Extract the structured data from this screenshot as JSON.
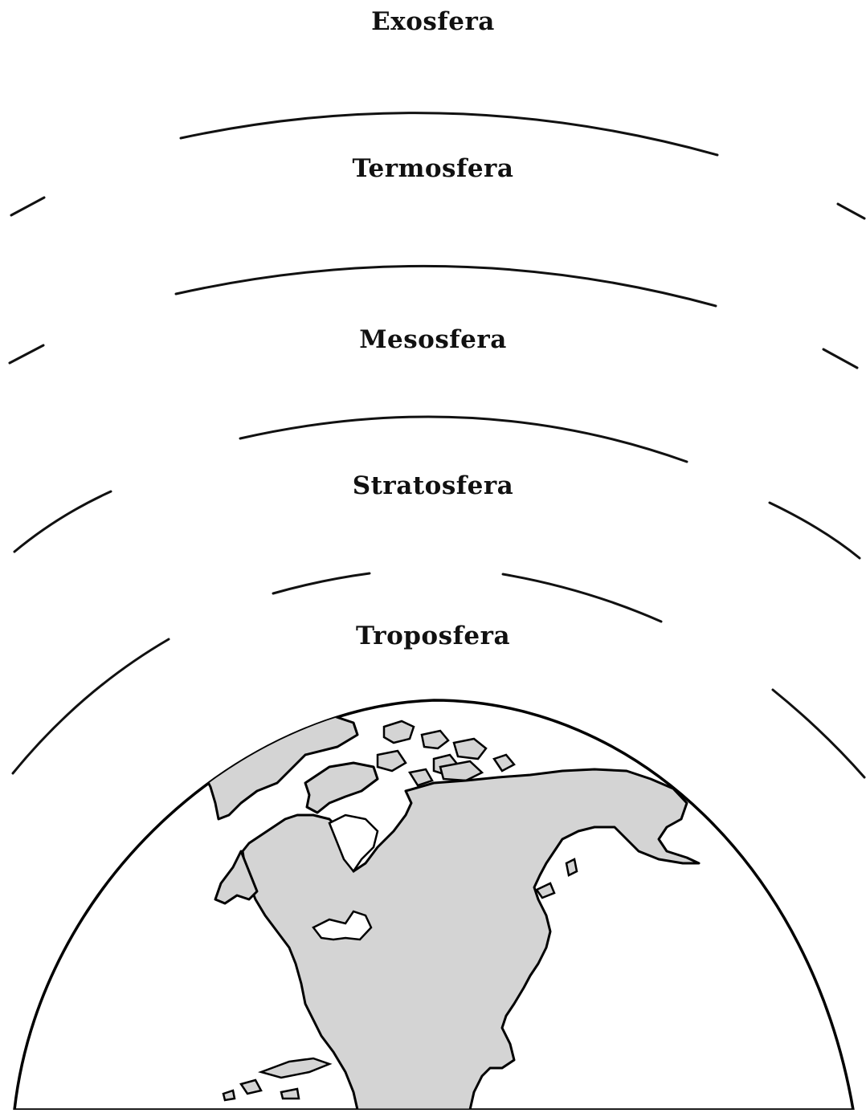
{
  "layers": {
    "exosphere": "Exosfera",
    "thermosphere": "Termosfera",
    "mesosphere": "Mesosfera",
    "stratosphere": "Stratosfera",
    "troposphere": "Troposfera"
  },
  "colors": {
    "line": "#111111",
    "land": "#d4d4d4",
    "background": "#ffffff"
  }
}
